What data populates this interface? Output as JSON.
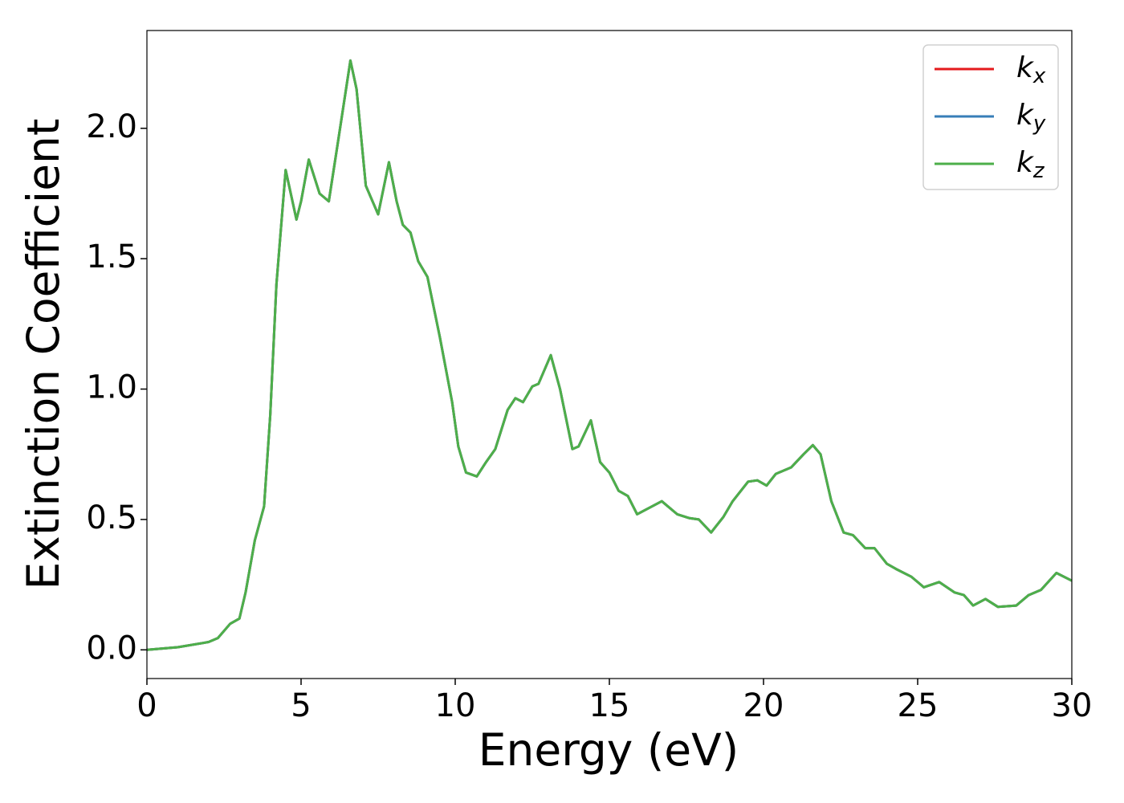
{
  "chart_data": {
    "type": "line",
    "xlabel": "Energy (eV)",
    "ylabel": "Extinction Coefficient",
    "x": [
      0,
      1,
      2,
      2.3,
      2.7,
      3.0,
      3.2,
      3.5,
      3.8,
      4.0,
      4.2,
      4.5,
      4.85,
      5.0,
      5.25,
      5.6,
      5.9,
      6.2,
      6.6,
      6.8,
      7.1,
      7.5,
      7.85,
      8.1,
      8.3,
      8.55,
      8.8,
      9.1,
      9.5,
      9.9,
      10.1,
      10.35,
      10.7,
      11.0,
      11.3,
      11.7,
      11.95,
      12.2,
      12.5,
      12.7,
      13.1,
      13.4,
      13.8,
      14.0,
      14.4,
      14.7,
      15.0,
      15.3,
      15.6,
      15.9,
      16.3,
      16.7,
      17.2,
      17.6,
      17.9,
      18.3,
      18.7,
      19.0,
      19.5,
      19.8,
      20.1,
      20.4,
      20.9,
      21.3,
      21.6,
      21.85,
      22.2,
      22.6,
      22.9,
      23.3,
      23.6,
      24.0,
      24.3,
      24.8,
      25.2,
      25.7,
      26.2,
      26.5,
      26.8,
      27.2,
      27.6,
      28.2,
      28.6,
      29.0,
      29.5,
      30.0
    ],
    "series": [
      {
        "name": "kx",
        "color": "#e41a1c",
        "values": [
          0,
          0.01,
          0.03,
          0.045,
          0.1,
          0.12,
          0.22,
          0.42,
          0.55,
          0.9,
          1.4,
          1.84,
          1.65,
          1.72,
          1.88,
          1.75,
          1.72,
          1.95,
          2.26,
          2.15,
          1.78,
          1.67,
          1.87,
          1.72,
          1.63,
          1.6,
          1.49,
          1.43,
          1.2,
          0.95,
          0.78,
          0.68,
          0.665,
          0.72,
          0.77,
          0.92,
          0.965,
          0.95,
          1.01,
          1.02,
          1.13,
          1.0,
          0.77,
          0.78,
          0.88,
          0.72,
          0.68,
          0.61,
          0.59,
          0.52,
          0.545,
          0.57,
          0.52,
          0.505,
          0.5,
          0.45,
          0.51,
          0.57,
          0.645,
          0.65,
          0.63,
          0.675,
          0.7,
          0.75,
          0.785,
          0.75,
          0.57,
          0.45,
          0.44,
          0.39,
          0.39,
          0.33,
          0.31,
          0.28,
          0.24,
          0.26,
          0.22,
          0.21,
          0.17,
          0.195,
          0.165,
          0.17,
          0.21,
          0.23,
          0.295,
          0.265
        ]
      },
      {
        "name": "ky",
        "color": "#377eb8",
        "values": [
          0,
          0.01,
          0.03,
          0.045,
          0.1,
          0.12,
          0.22,
          0.42,
          0.55,
          0.9,
          1.4,
          1.84,
          1.65,
          1.72,
          1.88,
          1.75,
          1.72,
          1.95,
          2.26,
          2.15,
          1.78,
          1.67,
          1.87,
          1.72,
          1.63,
          1.6,
          1.49,
          1.43,
          1.2,
          0.95,
          0.78,
          0.68,
          0.665,
          0.72,
          0.77,
          0.92,
          0.965,
          0.95,
          1.01,
          1.02,
          1.13,
          1.0,
          0.77,
          0.78,
          0.88,
          0.72,
          0.68,
          0.61,
          0.59,
          0.52,
          0.545,
          0.57,
          0.52,
          0.505,
          0.5,
          0.45,
          0.51,
          0.57,
          0.645,
          0.65,
          0.63,
          0.675,
          0.7,
          0.75,
          0.785,
          0.75,
          0.57,
          0.45,
          0.44,
          0.39,
          0.39,
          0.33,
          0.31,
          0.28,
          0.24,
          0.26,
          0.22,
          0.21,
          0.17,
          0.195,
          0.165,
          0.17,
          0.21,
          0.23,
          0.295,
          0.265
        ]
      },
      {
        "name": "kz",
        "color": "#4daf4a",
        "values": [
          0,
          0.01,
          0.03,
          0.045,
          0.1,
          0.12,
          0.22,
          0.42,
          0.55,
          0.9,
          1.4,
          1.84,
          1.65,
          1.72,
          1.88,
          1.75,
          1.72,
          1.95,
          2.26,
          2.15,
          1.78,
          1.67,
          1.87,
          1.72,
          1.63,
          1.6,
          1.49,
          1.43,
          1.2,
          0.95,
          0.78,
          0.68,
          0.665,
          0.72,
          0.77,
          0.92,
          0.965,
          0.95,
          1.01,
          1.02,
          1.13,
          1.0,
          0.77,
          0.78,
          0.88,
          0.72,
          0.68,
          0.61,
          0.59,
          0.52,
          0.545,
          0.57,
          0.52,
          0.505,
          0.5,
          0.45,
          0.51,
          0.57,
          0.645,
          0.65,
          0.63,
          0.675,
          0.7,
          0.75,
          0.785,
          0.75,
          0.57,
          0.45,
          0.44,
          0.39,
          0.39,
          0.33,
          0.31,
          0.28,
          0.24,
          0.26,
          0.22,
          0.21,
          0.17,
          0.195,
          0.165,
          0.17,
          0.21,
          0.23,
          0.295,
          0.265
        ]
      }
    ],
    "xlim": [
      0,
      30
    ],
    "xticks": [
      0,
      5,
      10,
      15,
      20,
      25,
      30
    ],
    "ylim": [
      -0.11,
      2.375
    ],
    "yticks": [
      {
        "value": 0,
        "label": "0.0"
      },
      0.5,
      {
        "value": 1,
        "label": "1.0"
      },
      1.5,
      {
        "value": 2,
        "label": "2.0"
      }
    ],
    "grid": false,
    "legend": "upper right"
  }
}
